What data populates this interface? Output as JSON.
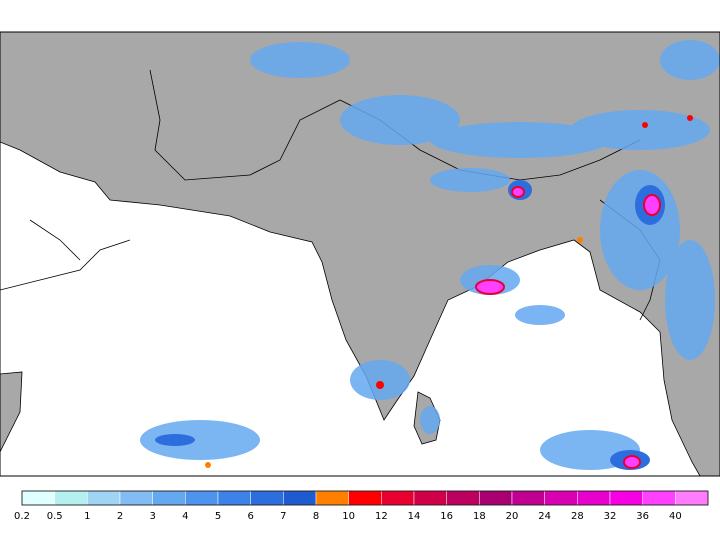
{
  "colorbar": {
    "labels": [
      0.2,
      0.5,
      1,
      2,
      3,
      4,
      5,
      6,
      7,
      8,
      10,
      12,
      14,
      16,
      18,
      20,
      24,
      28,
      32,
      36,
      40
    ],
    "colors": [
      "#e0ffff",
      "#b4f0f0",
      "#a0d4f4",
      "#82bcf2",
      "#64a8f0",
      "#4c94ee",
      "#3c82e8",
      "#2c6ede",
      "#1e5ad0",
      "#ff8000",
      "#ff0000",
      "#e80030",
      "#d00048",
      "#bc0060",
      "#a80070",
      "#c00090",
      "#d800b0",
      "#e800cc",
      "#f800e4",
      "#ff40ff",
      "#ff7cff"
    ]
  }
}
